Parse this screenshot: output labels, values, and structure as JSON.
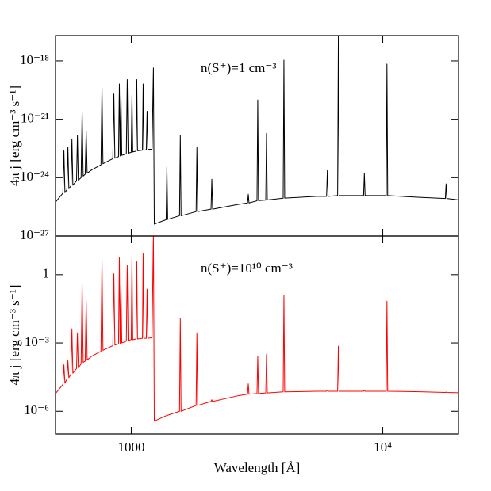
{
  "chart_data": [
    {
      "type": "line",
      "xscale": "log",
      "yscale": "log",
      "color": "#000000",
      "ylabel": "4π j [erg cm⁻³ s⁻¹]",
      "annotation": "n(S⁺)=1 cm⁻³",
      "xlim": [
        500,
        20000
      ],
      "ylim": [
        1e-27,
        2e-17
      ],
      "yticks": [
        {
          "value": 1e-27,
          "label": "10⁻²⁷"
        },
        {
          "value": 1e-24,
          "label": "10⁻²⁴"
        },
        {
          "value": 1e-21,
          "label": "10⁻²¹"
        },
        {
          "value": 1e-18,
          "label": "10⁻¹⁸"
        }
      ],
      "x": [
        500,
        535,
        540,
        545,
        555,
        560,
        565,
        576,
        581,
        586,
        606,
        611,
        616,
        632,
        638,
        644,
        656,
        662,
        668,
        696,
        758,
        765,
        772,
        845,
        853,
        861,
        890,
        897,
        903,
        910,
        917,
        956,
        964,
        972,
        1000,
        1007,
        1014,
        1045,
        1052,
        1059,
        1108,
        1115,
        1122,
        1148,
        1156,
        1164,
        1210,
        1225,
        1235,
        1376,
        1386,
        1396,
        1556,
        1567,
        1578,
        1811,
        1824,
        1837,
        2076,
        2091,
        2106,
        2657,
        2900,
        2920,
        2940,
        3162,
        3184,
        3206,
        3426,
        3450,
        3474,
        4018,
        4046,
        4074,
        5479,
        5978,
        6020,
        6062,
        6614,
        6660,
        6706,
        8390,
        8448,
        8506,
        10320,
        10390,
        10460,
        14020,
        17730,
        17850,
        17970,
        20000
      ],
      "values": [
        5.5e-26,
        1.6e-25,
        2.4e-23,
        1.7e-25,
        2.4e-25,
        3.8e-23,
        2.7e-25,
        3.8e-25,
        9.8e-23,
        4.1e-25,
        6.8e-25,
        1.5e-22,
        7.4e-25,
        1e-24,
        2.6e-21,
        1.2e-24,
        1.5e-24,
        2.5e-22,
        1.7e-24,
        2.5e-24,
        4.6e-24,
        4.2e-20,
        5.2e-24,
        9.5e-24,
        2e-20,
        1e-23,
        1.2e-23,
        6.6e-20,
        1.3e-23,
        1.7e-20,
        1.4e-23,
        1.7e-23,
        1.1e-19,
        1.8e-23,
        2e-23,
        1.7e-20,
        2.1e-23,
        2.3e-23,
        1.1e-19,
        2.4e-23,
        2.6e-23,
        6.6e-20,
        2.6e-23,
        2.7e-23,
        2.6e-21,
        2.8e-23,
        2.9e-23,
        4.4e-19,
        4.1e-27,
        6.9e-27,
        3.7e-24,
        7.2e-27,
        1.1e-26,
        1.5e-22,
        1.1e-26,
        1.8e-26,
        3.5e-23,
        1.8e-26,
        2.4e-26,
        8.3e-25,
        2.4e-26,
        4.2e-26,
        5e-26,
        1.4e-25,
        5e-26,
        6.5e-26,
        1e-20,
        6.6e-26,
        7e-26,
        1.9e-22,
        7.1e-26,
        8.8e-26,
        1.1e-18,
        8.9e-26,
        1.1e-25,
        1.1e-25,
        2.3e-24,
        1.1e-25,
        1.2e-25,
        3e-17,
        1.2e-25,
        1.2e-25,
        1.7e-24,
        1.2e-25,
        1.2e-25,
        6.9e-19,
        1.2e-25,
        9.8e-26,
        8.5e-26,
        4.8e-25,
        8.5e-26,
        7.2e-26
      ]
    },
    {
      "type": "line",
      "xscale": "log",
      "yscale": "log",
      "color": "#ff0000",
      "ylabel": "4π j [erg cm⁻³ s⁻¹]",
      "xlabel": "Wavelength [Å]",
      "annotation": "n(S⁺)=10¹⁰ cm⁻³",
      "xlim": [
        500,
        20000
      ],
      "ylim": [
        1e-07,
        50
      ],
      "xticks": [
        1000,
        {
          "value": 10000,
          "label": "10⁴"
        }
      ],
      "yticks": [
        {
          "value": 1e-06,
          "label": "10⁻⁶"
        },
        {
          "value": 0.001,
          "label": "10⁻³"
        },
        1
      ],
      "x": [
        500,
        535,
        540,
        545,
        555,
        560,
        565,
        576,
        581,
        586,
        606,
        611,
        616,
        632,
        638,
        644,
        656,
        662,
        668,
        696,
        758,
        765,
        772,
        845,
        853,
        861,
        890,
        897,
        903,
        910,
        917,
        956,
        964,
        972,
        1000,
        1007,
        1014,
        1045,
        1052,
        1059,
        1108,
        1115,
        1122,
        1148,
        1156,
        1164,
        1210,
        1225,
        1235,
        1376,
        1386,
        1396,
        1556,
        1567,
        1578,
        1811,
        1824,
        1837,
        2076,
        2091,
        2106,
        2657,
        2900,
        2920,
        2940,
        3162,
        3184,
        3206,
        3426,
        3450,
        3474,
        4018,
        4046,
        4074,
        5479,
        5978,
        6020,
        6062,
        6614,
        6660,
        6706,
        8390,
        8448,
        8506,
        10320,
        10390,
        10460,
        14020,
        17730,
        17850,
        17970,
        20000
      ],
      "values": [
        6e-06,
        1.5e-05,
        0.00011,
        1.7e-05,
        2.6e-05,
        0.00017,
        3e-05,
        4.3e-05,
        0.0042,
        4.7e-05,
        7.5e-05,
        0.0028,
        8.1e-05,
        0.00012,
        0.4,
        0.00014,
        0.00016,
        0.069,
        0.00018,
        0.00026,
        0.00043,
        4.4,
        0.00047,
        0.00076,
        1.1,
        0.00081,
        0.0009,
        5.6,
        0.00094,
        0.34,
        0.001,
        0.0012,
        2.5,
        0.0013,
        0.0014,
        5.6,
        0.0014,
        0.0015,
        3.7,
        0.0015,
        0.0016,
        8.3,
        0.0016,
        0.0016,
        0.23,
        0.0016,
        0.0017,
        80,
        3.7e-07,
        6.4e-07,
        6.5e-07,
        6.7e-07,
        1e-06,
        0.012,
        1e-06,
        1.8e-06,
        0.0028,
        1.8e-06,
        2.7e-06,
        3.2e-06,
        2.7e-06,
        4.8e-06,
        5.6e-06,
        1.6e-05,
        5.6e-06,
        6e-06,
        0.00026,
        6e-06,
        6.4e-06,
        0.00032,
        6.4e-06,
        7.1e-06,
        0.12,
        7.1e-06,
        7.6e-06,
        7.6e-06,
        8.5e-06,
        7.6e-06,
        7.6e-06,
        0.00072,
        7.6e-06,
        7.6e-06,
        8.5e-06,
        7.6e-06,
        7.6e-06,
        0.069,
        7.6e-06,
        7.2e-06,
        6.7e-06,
        6.9e-06,
        6.7e-06,
        6.5e-06
      ]
    }
  ]
}
